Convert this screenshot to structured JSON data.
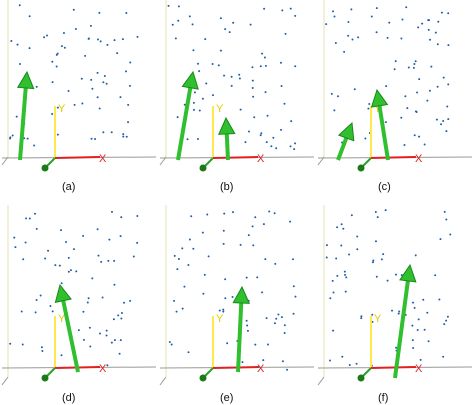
{
  "axis_labels": {
    "x": "X",
    "y": "Y"
  },
  "panels": [
    {
      "label": "(a)"
    },
    {
      "label": "(b)"
    },
    {
      "label": "(c)"
    },
    {
      "label": "(d)"
    },
    {
      "label": "(e)"
    },
    {
      "label": "(f)"
    }
  ]
}
